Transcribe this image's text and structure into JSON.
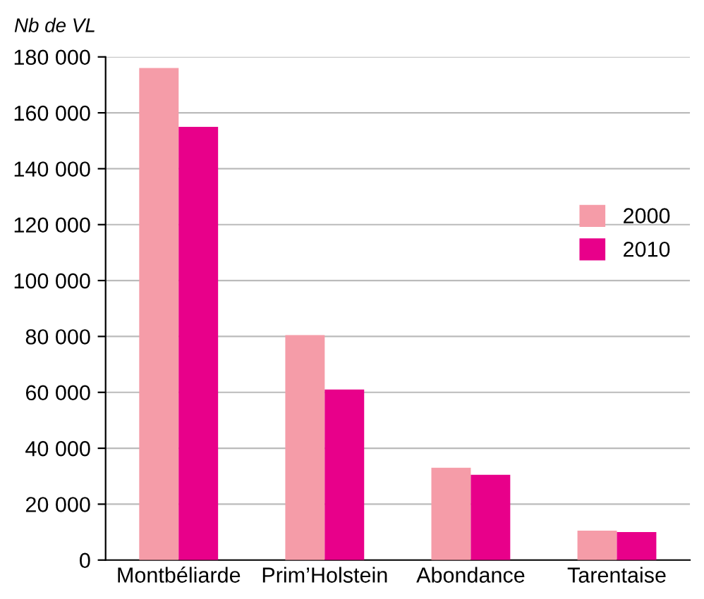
{
  "chart_data": {
    "type": "bar",
    "ylabel": "Nb de VL",
    "categories": [
      "Montbéliarde",
      "Prim’Holstein",
      "Abondance",
      "Tarentaise"
    ],
    "series": [
      {
        "name": "2000",
        "color": "#f59ca8",
        "values": [
          176000,
          80500,
          33000,
          10500
        ]
      },
      {
        "name": "2010",
        "color": "#e8008a",
        "values": [
          155000,
          61000,
          30500,
          10000
        ]
      }
    ],
    "ylim": [
      0,
      180000
    ],
    "yticks": [
      {
        "value": 0,
        "label": "0"
      },
      {
        "value": 20000,
        "label": "20 000"
      },
      {
        "value": 40000,
        "label": "40 000"
      },
      {
        "value": 60000,
        "label": "60 000"
      },
      {
        "value": 80000,
        "label": "80 000"
      },
      {
        "value": 100000,
        "label": "100 000"
      },
      {
        "value": 120000,
        "label": "120 000"
      },
      {
        "value": 140000,
        "label": "140 000"
      },
      {
        "value": 160000,
        "label": "160 000"
      },
      {
        "value": 180000,
        "label": "180 000"
      }
    ],
    "grid": "y",
    "legend": "right"
  }
}
